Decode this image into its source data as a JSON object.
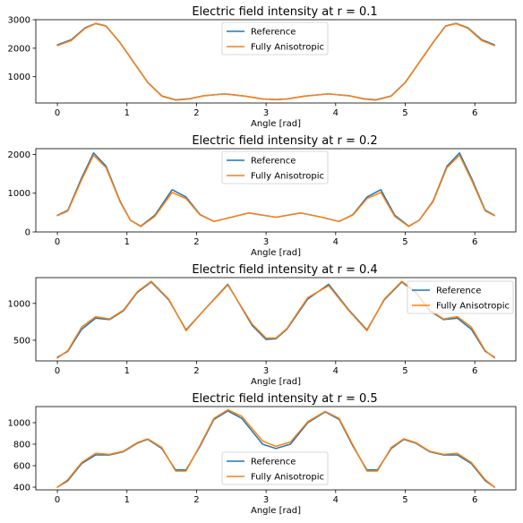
{
  "colors": {
    "reference": "#1f77b4",
    "anisotropic": "#ff7f0e"
  },
  "chart_data": [
    {
      "type": "line",
      "title": "Electric field intensity at r = 0.1",
      "xlabel": "Angle [rad]",
      "ylabel": "",
      "xlim": [
        -0.31,
        6.59
      ],
      "ylim": [
        80,
        3000
      ],
      "xticks": [
        0,
        1,
        2,
        3,
        4,
        5,
        6
      ],
      "yticks": [
        1000,
        2000,
        3000
      ],
      "legend": "top-center",
      "x": [
        0,
        0.2,
        0.4,
        0.55,
        0.7,
        0.9,
        1.1,
        1.3,
        1.5,
        1.7,
        1.9,
        2.1,
        2.4,
        2.7,
        2.95,
        3.1416,
        3.3,
        3.55,
        3.9,
        4.2,
        4.4,
        4.58,
        4.8,
        5.0,
        5.2,
        5.4,
        5.58,
        5.73,
        5.9,
        6.1,
        6.2832
      ],
      "series": [
        {
          "name": "Reference",
          "values": [
            2120,
            2300,
            2720,
            2870,
            2780,
            2200,
            1500,
            800,
            330,
            190,
            230,
            330,
            400,
            320,
            220,
            200,
            220,
            320,
            400,
            330,
            230,
            190,
            330,
            800,
            1500,
            2200,
            2780,
            2870,
            2720,
            2300,
            2120
          ]
        },
        {
          "name": "Fully Anisotropic",
          "values": [
            2090,
            2270,
            2700,
            2860,
            2770,
            2190,
            1490,
            790,
            320,
            180,
            220,
            330,
            400,
            320,
            220,
            195,
            220,
            320,
            400,
            330,
            220,
            180,
            320,
            790,
            1490,
            2190,
            2770,
            2860,
            2700,
            2270,
            2090
          ]
        }
      ]
    },
    {
      "type": "line",
      "title": "Electric field intensity at r = 0.2",
      "xlabel": "Angle [rad]",
      "ylabel": "",
      "xlim": [
        -0.31,
        6.59
      ],
      "ylim": [
        0,
        2150
      ],
      "xticks": [
        0,
        1,
        2,
        3,
        4,
        5,
        6
      ],
      "yticks": [
        0,
        1000,
        2000
      ],
      "legend": "top-center",
      "x": [
        0,
        0.15,
        0.35,
        0.52,
        0.7,
        0.9,
        1.05,
        1.2,
        1.4,
        1.65,
        1.85,
        2.05,
        2.25,
        2.5,
        2.75,
        3.1416,
        3.5,
        3.8,
        4.05,
        4.25,
        4.45,
        4.65,
        4.85,
        5.05,
        5.2,
        5.4,
        5.6,
        5.78,
        5.95,
        6.15,
        6.2832
      ],
      "series": [
        {
          "name": "Reference",
          "values": [
            430,
            560,
            1400,
            2040,
            1700,
            800,
            300,
            150,
            430,
            1090,
            900,
            450,
            270,
            380,
            490,
            380,
            490,
            380,
            270,
            450,
            900,
            1090,
            430,
            150,
            300,
            800,
            1700,
            2040,
            1400,
            560,
            430
          ]
        },
        {
          "name": "Fully Anisotropic",
          "values": [
            420,
            540,
            1350,
            1980,
            1660,
            780,
            300,
            140,
            400,
            1020,
            860,
            440,
            270,
            380,
            490,
            380,
            490,
            380,
            270,
            440,
            860,
            1020,
            400,
            140,
            300,
            780,
            1660,
            1980,
            1350,
            540,
            420
          ]
        }
      ]
    },
    {
      "type": "line",
      "title": "Electric field intensity at r = 0.4",
      "xlabel": "Angle [rad]",
      "ylabel": "",
      "xlim": [
        -0.31,
        6.59
      ],
      "ylim": [
        220,
        1350
      ],
      "xticks": [
        0,
        1,
        2,
        3,
        4,
        5,
        6
      ],
      "yticks": [
        500,
        1000
      ],
      "legend": "top-right",
      "x": [
        0,
        0.15,
        0.35,
        0.55,
        0.75,
        0.95,
        1.15,
        1.35,
        1.6,
        1.85,
        2.1,
        2.45,
        2.8,
        3.0,
        3.1416,
        3.3,
        3.6,
        3.9,
        4.2,
        4.45,
        4.7,
        4.95,
        5.15,
        5.35,
        5.55,
        5.75,
        5.95,
        6.15,
        6.2832
      ],
      "series": [
        {
          "name": "Reference",
          "values": [
            270,
            350,
            650,
            800,
            780,
            900,
            1150,
            1290,
            1050,
            640,
            900,
            1260,
            700,
            510,
            520,
            650,
            1060,
            1260,
            900,
            640,
            1050,
            1290,
            1150,
            900,
            780,
            800,
            650,
            350,
            270
          ]
        },
        {
          "name": "Fully Anisotropic",
          "values": [
            260,
            360,
            680,
            820,
            790,
            910,
            1160,
            1300,
            1060,
            630,
            900,
            1250,
            720,
            530,
            530,
            660,
            1080,
            1240,
            890,
            630,
            1060,
            1300,
            1160,
            910,
            790,
            820,
            680,
            360,
            260
          ]
        }
      ]
    },
    {
      "type": "line",
      "title": "Electric field intensity at r = 0.5",
      "xlabel": "Angle [rad]",
      "ylabel": "",
      "xlim": [
        -0.31,
        6.59
      ],
      "ylim": [
        375,
        1150
      ],
      "xticks": [
        0,
        1,
        2,
        3,
        4,
        5,
        6
      ],
      "yticks": [
        400,
        600,
        800,
        1000
      ],
      "legend": "bottom-center",
      "x": [
        0,
        0.15,
        0.35,
        0.55,
        0.75,
        0.95,
        1.15,
        1.3,
        1.5,
        1.7,
        1.85,
        2.05,
        2.25,
        2.45,
        2.65,
        2.95,
        3.1416,
        3.35,
        3.6,
        3.85,
        4.05,
        4.25,
        4.45,
        4.6,
        4.8,
        4.98,
        5.15,
        5.35,
        5.55,
        5.75,
        5.95,
        6.15,
        6.2832
      ],
      "series": [
        {
          "name": "Reference",
          "values": [
            400,
            460,
            620,
            700,
            700,
            730,
            810,
            845,
            760,
            560,
            560,
            780,
            1030,
            1110,
            1040,
            800,
            760,
            800,
            1000,
            1100,
            1030,
            780,
            560,
            560,
            760,
            845,
            810,
            730,
            700,
            700,
            620,
            460,
            400
          ]
        },
        {
          "name": "Fully Anisotropic",
          "values": [
            400,
            470,
            630,
            715,
            705,
            735,
            815,
            850,
            770,
            550,
            550,
            790,
            1040,
            1120,
            1060,
            830,
            780,
            820,
            1010,
            1105,
            1040,
            790,
            550,
            550,
            770,
            850,
            815,
            735,
            705,
            715,
            630,
            470,
            400
          ]
        }
      ]
    }
  ]
}
